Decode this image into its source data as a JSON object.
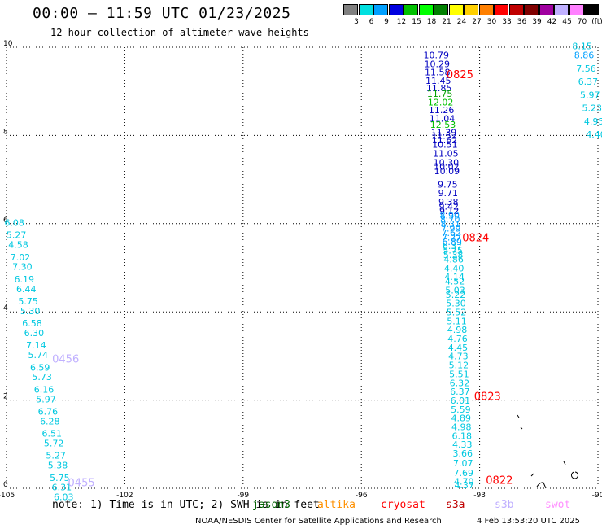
{
  "header": {
    "title": "00:00 – 11:59 UTC 01/23/2025",
    "subtitle": "12 hour collection of altimeter wave heights"
  },
  "legend": {
    "bins": [
      {
        "color": "#808080",
        "label": "3"
      },
      {
        "color": "#00e0e0",
        "label": "6"
      },
      {
        "color": "#00a0ff",
        "label": "9"
      },
      {
        "color": "#0000e0",
        "label": "12"
      },
      {
        "color": "#00c000",
        "label": "15"
      },
      {
        "color": "#00ff00",
        "label": "18"
      },
      {
        "color": "#008000",
        "label": "21"
      },
      {
        "color": "#ffff00",
        "label": "24"
      },
      {
        "color": "#ffd000",
        "label": "27"
      },
      {
        "color": "#ff8000",
        "label": "30"
      },
      {
        "color": "#ff0000",
        "label": "33"
      },
      {
        "color": "#c00000",
        "label": "36"
      },
      {
        "color": "#800000",
        "label": "39"
      },
      {
        "color": "#a000a0",
        "label": "42"
      },
      {
        "color": "#c0b0ff",
        "label": "45"
      },
      {
        "color": "#ff80ff",
        "label": "70"
      },
      {
        "color": "#000000",
        "label": "(ft)"
      }
    ]
  },
  "footer": {
    "note": "note: 1) Time is in UTC; 2) SWH is in feet",
    "satellites": [
      {
        "name": "jason3",
        "color": "#006000"
      },
      {
        "name": "altika",
        "color": "#ff9000"
      },
      {
        "name": "cryosat",
        "color": "#ff0000"
      },
      {
        "name": "s3a",
        "color": "#c00000"
      },
      {
        "name": "s3b",
        "color": "#c0b0ff"
      },
      {
        "name": "swot",
        "color": "#ff90ff"
      }
    ],
    "credit": "NOAA/NESDIS Center for Satellite Applications and Research",
    "timestamp": "4 Feb 13:53:20 UTC 2025"
  },
  "chart_data": {
    "type": "scatter",
    "xlim": [
      -105,
      -90
    ],
    "ylim": [
      0,
      10
    ],
    "x_ticks": [
      -105,
      -102,
      -99,
      -96,
      -93,
      -90
    ],
    "x_tick_labels": [
      "-105",
      "-102",
      "-99",
      "-96",
      "-93",
      "-90"
    ],
    "y_ticks": [
      0,
      2,
      4,
      6,
      8,
      10
    ],
    "y_tick_labels": [
      "0",
      "2",
      "4",
      "6",
      "8",
      "10"
    ],
    "grid": true,
    "tracks": [
      {
        "pass_labels": [
          {
            "text": "0825",
            "x": -93.5,
            "y": 9.3,
            "color": "#ff0000"
          },
          {
            "text": "0824",
            "x": -93.1,
            "y": 5.6,
            "color": "#ff0000"
          },
          {
            "text": "0823",
            "x": -92.8,
            "y": 2.0,
            "color": "#ff0000"
          },
          {
            "text": "0822",
            "x": -92.5,
            "y": 0.1,
            "color": "#ff0000"
          }
        ],
        "points": [
          {
            "x": -94.1,
            "y": 9.75,
            "v": "10.79",
            "c": "#0000c0"
          },
          {
            "x": -94.08,
            "y": 9.55,
            "v": "10.29",
            "c": "#0000c0"
          },
          {
            "x": -94.07,
            "y": 9.36,
            "v": "11.58",
            "c": "#0000c0"
          },
          {
            "x": -94.05,
            "y": 9.17,
            "v": "11.45",
            "c": "#0000c0"
          },
          {
            "x": -94.03,
            "y": 9.0,
            "v": "11.85",
            "c": "#0000c0"
          },
          {
            "x": -94.01,
            "y": 8.87,
            "v": "11.75",
            "c": "#00a000"
          },
          {
            "x": -93.99,
            "y": 8.68,
            "v": "12.02",
            "c": "#00c000"
          },
          {
            "x": -93.97,
            "y": 8.51,
            "v": "11.26",
            "c": "#0000c0"
          },
          {
            "x": -93.95,
            "y": 8.31,
            "v": "11.04",
            "c": "#0000c0"
          },
          {
            "x": -93.93,
            "y": 8.17,
            "v": "12.53",
            "c": "#00c000"
          },
          {
            "x": -93.91,
            "y": 8.0,
            "v": "11.39",
            "c": "#0000c0"
          },
          {
            "x": -93.9,
            "y": 7.92,
            "v": "11.52",
            "c": "#0000c0"
          },
          {
            "x": -93.89,
            "y": 7.82,
            "v": "11.62",
            "c": "#0000c0"
          },
          {
            "x": -93.88,
            "y": 7.72,
            "v": "10.51",
            "c": "#0000c0"
          },
          {
            "x": -93.86,
            "y": 7.52,
            "v": "11.05",
            "c": "#0000c0"
          },
          {
            "x": -93.85,
            "y": 7.32,
            "v": "10.30",
            "c": "#0000c0"
          },
          {
            "x": -93.84,
            "y": 7.22,
            "v": "10.02",
            "c": "#0000c0"
          },
          {
            "x": -93.83,
            "y": 7.12,
            "v": "10.09",
            "c": "#0000c0"
          },
          {
            "x": -93.81,
            "y": 6.82,
            "v": "9.75",
            "c": "#0000c0"
          },
          {
            "x": -93.8,
            "y": 6.62,
            "v": "9.71",
            "c": "#0000c0"
          },
          {
            "x": -93.79,
            "y": 6.42,
            "v": "9.38",
            "c": "#0000c0"
          },
          {
            "x": -93.78,
            "y": 6.32,
            "v": "9.42",
            "c": "#0000c0"
          },
          {
            "x": -93.77,
            "y": 6.22,
            "v": "9.12",
            "c": "#0000c0"
          },
          {
            "x": -93.76,
            "y": 6.12,
            "v": "8.90",
            "c": "#00a0ff"
          },
          {
            "x": -93.75,
            "y": 6.02,
            "v": "8.70",
            "c": "#00a0ff"
          },
          {
            "x": -93.74,
            "y": 5.92,
            "v": "8.31",
            "c": "#00a0ff"
          },
          {
            "x": -93.73,
            "y": 5.82,
            "v": "7.99",
            "c": "#00a0ff"
          },
          {
            "x": -93.72,
            "y": 5.72,
            "v": "7.62",
            "c": "#00a0ff"
          },
          {
            "x": -93.71,
            "y": 5.62,
            "v": "7.27",
            "c": "#00a0ff"
          },
          {
            "x": -93.7,
            "y": 5.52,
            "v": "6.89",
            "c": "#00a0ff"
          },
          {
            "x": -93.69,
            "y": 5.42,
            "v": "6.37",
            "c": "#00c8e0"
          },
          {
            "x": -93.68,
            "y": 5.32,
            "v": "5.75",
            "c": "#00c8e0"
          },
          {
            "x": -93.67,
            "y": 5.22,
            "v": "5.38",
            "c": "#00c8e0"
          },
          {
            "x": -93.66,
            "y": 5.12,
            "v": "4.86",
            "c": "#00c8e0"
          },
          {
            "x": -93.65,
            "y": 4.92,
            "v": "4.40",
            "c": "#00c8e0"
          },
          {
            "x": -93.64,
            "y": 4.72,
            "v": "4.14",
            "c": "#00c8e0"
          },
          {
            "x": -93.63,
            "y": 4.62,
            "v": "4.52",
            "c": "#00c8e0"
          },
          {
            "x": -93.62,
            "y": 4.42,
            "v": "5.03",
            "c": "#00c8e0"
          },
          {
            "x": -93.61,
            "y": 4.32,
            "v": "5.22",
            "c": "#00c8e0"
          },
          {
            "x": -93.6,
            "y": 4.12,
            "v": "5.30",
            "c": "#00c8e0"
          },
          {
            "x": -93.59,
            "y": 3.92,
            "v": "5.52",
            "c": "#00c8e0"
          },
          {
            "x": -93.58,
            "y": 3.72,
            "v": "5.11",
            "c": "#00c8e0"
          },
          {
            "x": -93.57,
            "y": 3.52,
            "v": "4.98",
            "c": "#00c8e0"
          },
          {
            "x": -93.56,
            "y": 3.32,
            "v": "4.76",
            "c": "#00c8e0"
          },
          {
            "x": -93.55,
            "y": 3.12,
            "v": "4.45",
            "c": "#00c8e0"
          },
          {
            "x": -93.54,
            "y": 2.92,
            "v": "4.73",
            "c": "#00c8e0"
          },
          {
            "x": -93.53,
            "y": 2.72,
            "v": "5.12",
            "c": "#00c8e0"
          },
          {
            "x": -93.52,
            "y": 2.52,
            "v": "5.51",
            "c": "#00c8e0"
          },
          {
            "x": -93.51,
            "y": 2.32,
            "v": "6.32",
            "c": "#00c8e0"
          },
          {
            "x": -93.5,
            "y": 2.12,
            "v": "6.37",
            "c": "#00c8e0"
          },
          {
            "x": -93.49,
            "y": 1.92,
            "v": "6.01",
            "c": "#00c8e0"
          },
          {
            "x": -93.48,
            "y": 1.72,
            "v": "5.59",
            "c": "#00c8e0"
          },
          {
            "x": -93.47,
            "y": 1.52,
            "v": "4.89",
            "c": "#00c8e0"
          },
          {
            "x": -93.46,
            "y": 1.32,
            "v": "4.98",
            "c": "#00c8e0"
          },
          {
            "x": -93.45,
            "y": 1.12,
            "v": "6.18",
            "c": "#00c8e0"
          },
          {
            "x": -93.44,
            "y": 0.92,
            "v": "4.33",
            "c": "#00c8e0"
          },
          {
            "x": -93.43,
            "y": 0.72,
            "v": "3.66",
            "c": "#00c8e0"
          },
          {
            "x": -93.42,
            "y": 0.5,
            "v": "7.07",
            "c": "#00c8e0"
          },
          {
            "x": -93.41,
            "y": 0.28,
            "v": "7.69",
            "c": "#00c8e0"
          },
          {
            "x": -93.4,
            "y": 0.08,
            "v": "4.70",
            "c": "#00c8e0"
          },
          {
            "x": -93.39,
            "y": 0.0,
            "v": "4.37",
            "c": "#00c8e0"
          }
        ]
      },
      {
        "pass_labels": [
          {
            "text": "0456",
            "x": -103.5,
            "y": 2.85,
            "color": "#c0b0ff"
          },
          {
            "text": "0455",
            "x": -103.1,
            "y": 0.05,
            "color": "#c0b0ff"
          }
        ],
        "points": [
          {
            "x": -104.8,
            "y": 5.95,
            "v": "6.08",
            "c": "#00c8e0"
          },
          {
            "x": -104.75,
            "y": 5.67,
            "v": "5.27",
            "c": "#00c8e0"
          },
          {
            "x": -104.7,
            "y": 5.45,
            "v": "4.58",
            "c": "#00c8e0"
          },
          {
            "x": -104.65,
            "y": 5.17,
            "v": "7.02",
            "c": "#00c8e0"
          },
          {
            "x": -104.6,
            "y": 4.95,
            "v": "7.30",
            "c": "#00c8e0"
          },
          {
            "x": -104.55,
            "y": 4.67,
            "v": "6.19",
            "c": "#00c8e0"
          },
          {
            "x": -104.5,
            "y": 4.45,
            "v": "6.44",
            "c": "#00c8e0"
          },
          {
            "x": -104.45,
            "y": 4.17,
            "v": "5.75",
            "c": "#00c8e0"
          },
          {
            "x": -104.4,
            "y": 3.95,
            "v": "5.30",
            "c": "#00c8e0"
          },
          {
            "x": -104.35,
            "y": 3.67,
            "v": "6.58",
            "c": "#00c8e0"
          },
          {
            "x": -104.3,
            "y": 3.45,
            "v": "6.30",
            "c": "#00c8e0"
          },
          {
            "x": -104.25,
            "y": 3.17,
            "v": "7.14",
            "c": "#00c8e0"
          },
          {
            "x": -104.2,
            "y": 2.95,
            "v": "5.74",
            "c": "#00c8e0"
          },
          {
            "x": -104.15,
            "y": 2.67,
            "v": "6.59",
            "c": "#00c8e0"
          },
          {
            "x": -104.1,
            "y": 2.45,
            "v": "5.73",
            "c": "#00c8e0"
          },
          {
            "x": -104.05,
            "y": 2.17,
            "v": "6.16",
            "c": "#00c8e0"
          },
          {
            "x": -104.0,
            "y": 1.95,
            "v": "5.97",
            "c": "#00c8e0"
          },
          {
            "x": -103.95,
            "y": 1.67,
            "v": "6.76",
            "c": "#00c8e0"
          },
          {
            "x": -103.9,
            "y": 1.45,
            "v": "6.28",
            "c": "#00c8e0"
          },
          {
            "x": -103.85,
            "y": 1.17,
            "v": "6.51",
            "c": "#00c8e0"
          },
          {
            "x": -103.8,
            "y": 0.95,
            "v": "5.72",
            "c": "#00c8e0"
          },
          {
            "x": -103.75,
            "y": 0.67,
            "v": "5.27",
            "c": "#00c8e0"
          },
          {
            "x": -103.7,
            "y": 0.45,
            "v": "5.38",
            "c": "#00c8e0"
          },
          {
            "x": -103.65,
            "y": 0.17,
            "v": "5.75",
            "c": "#00c8e0"
          },
          {
            "x": -103.6,
            "y": -0.05,
            "v": "6.31",
            "c": "#00c8e0"
          },
          {
            "x": -103.55,
            "y": -0.27,
            "v": "6.03",
            "c": "#00c8e0"
          }
        ]
      },
      {
        "pass_labels": [],
        "points": [
          {
            "x": -90.4,
            "y": 9.95,
            "v": "8.15",
            "c": "#00c8e0"
          },
          {
            "x": -90.35,
            "y": 9.75,
            "v": "8.86",
            "c": "#00a0ff"
          },
          {
            "x": -90.3,
            "y": 9.45,
            "v": "7.56",
            "c": "#00c8e0"
          },
          {
            "x": -90.25,
            "y": 9.15,
            "v": "6.37",
            "c": "#00c8e0"
          },
          {
            "x": -90.2,
            "y": 8.85,
            "v": "5.97",
            "c": "#00c8e0"
          },
          {
            "x": -90.15,
            "y": 8.55,
            "v": "5.23",
            "c": "#00c8e0"
          },
          {
            "x": -90.1,
            "y": 8.25,
            "v": "4.95",
            "c": "#00c8e0"
          },
          {
            "x": -90.05,
            "y": 7.95,
            "v": "4.40",
            "c": "#00c8e0"
          }
        ]
      }
    ]
  }
}
